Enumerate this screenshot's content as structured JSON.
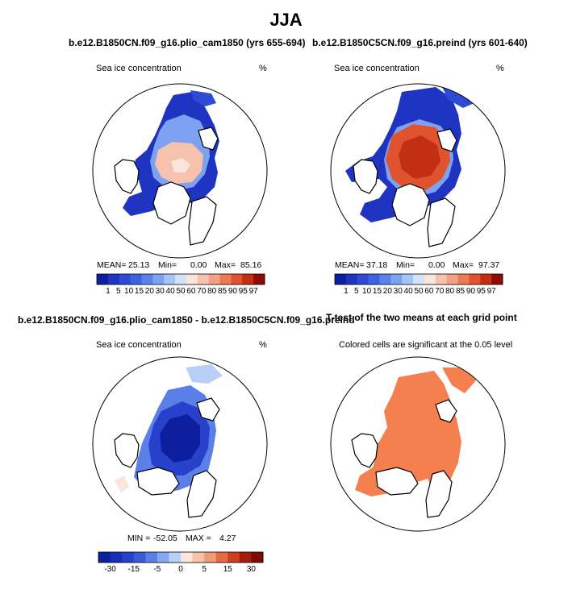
{
  "figure": {
    "title": "JJA",
    "panels": [
      {
        "title": "b.e12.B1850CN.f09_g16.plio_cam1850 (yrs 655-694)",
        "subtitle": "Sea ice concentration",
        "units": "%",
        "mean_label": "MEAN=",
        "mean": "25.13",
        "min_label": "Min=",
        "min": "0.00",
        "max_label": "Max=",
        "max": "85.16"
      },
      {
        "title": "b.e12.B1850C5CN.f09_g16.preind (yrs 601-640)",
        "subtitle": "Sea ice concentration",
        "units": "%",
        "mean_label": "MEAN=",
        "mean": "37.18",
        "min_label": "Min=",
        "min": "0.00",
        "max_label": "Max=",
        "max": "97.37"
      },
      {
        "title": "b.e12.B1850CN.f09_g16.plio_cam1850 - b.e12.B1850C5CN.f09_g16.preind",
        "subtitle": "Sea ice concentration",
        "units": "%",
        "min_label": "MIN =",
        "min": "-52.05",
        "max_label": "MAX =",
        "max": "4.27"
      },
      {
        "title": "T-test of the two means at each grid point",
        "subtitle": "Colored cells are significant at the 0.05 level"
      }
    ]
  },
  "chart_data": [
    {
      "type": "heatmap",
      "title": "b.e12.B1850CN.f09_g16.plio_cam1850 (yrs 655-694)",
      "variable": "Sea ice concentration",
      "units": "%",
      "mean": 25.13,
      "min": 0.0,
      "max": 85.16,
      "colorbar": {
        "levels": [
          "1",
          "5",
          "10",
          "15",
          "20",
          "30",
          "40",
          "50",
          "60",
          "70",
          "80",
          "85",
          "90",
          "95",
          "97"
        ]
      }
    },
    {
      "type": "heatmap",
      "title": "b.e12.B1850C5CN.f09_g16.preind (yrs 601-640)",
      "variable": "Sea ice concentration",
      "units": "%",
      "mean": 37.18,
      "min": 0.0,
      "max": 97.37,
      "colorbar": {
        "levels": [
          "1",
          "5",
          "10",
          "15",
          "20",
          "30",
          "40",
          "50",
          "60",
          "70",
          "80",
          "85",
          "90",
          "95",
          "97"
        ]
      }
    },
    {
      "type": "heatmap",
      "title": "b.e12.B1850CN.f09_g16.plio_cam1850 - b.e12.B1850C5CN.f09_g16.preind",
      "variable": "Sea ice concentration",
      "units": "%",
      "min": -52.05,
      "max": 4.27,
      "colorbar": {
        "levels": [
          "-30",
          "-15",
          "-5",
          "0",
          "5",
          "15",
          "30"
        ]
      }
    },
    {
      "type": "heatmap",
      "title": "T-test of the two means at each grid point",
      "note": "Colored cells are significant at the 0.05 level"
    }
  ],
  "colors": {
    "abs_scale": [
      "#0d1f9e",
      "#1f35c2",
      "#2f4bd6",
      "#3e63e0",
      "#5a82ea",
      "#7ea2f2",
      "#a6c4f8",
      "#d2e2fb",
      "#fbe4da",
      "#f7c2ad",
      "#f3a184",
      "#ec7a57",
      "#e0532f",
      "#c42f14",
      "#8e0c05"
    ],
    "diff_scale": [
      "#0d1f9e",
      "#1a2fb8",
      "#2841cc",
      "#3a5ad8",
      "#5a7fe6",
      "#86a7f0",
      "#b8d0f8",
      "#fbe6dc",
      "#f6c2a8",
      "#ef9a78",
      "#e66a45",
      "#cf3f1f",
      "#a41e0c",
      "#7a0b05"
    ],
    "significant": "#f47f4f"
  }
}
